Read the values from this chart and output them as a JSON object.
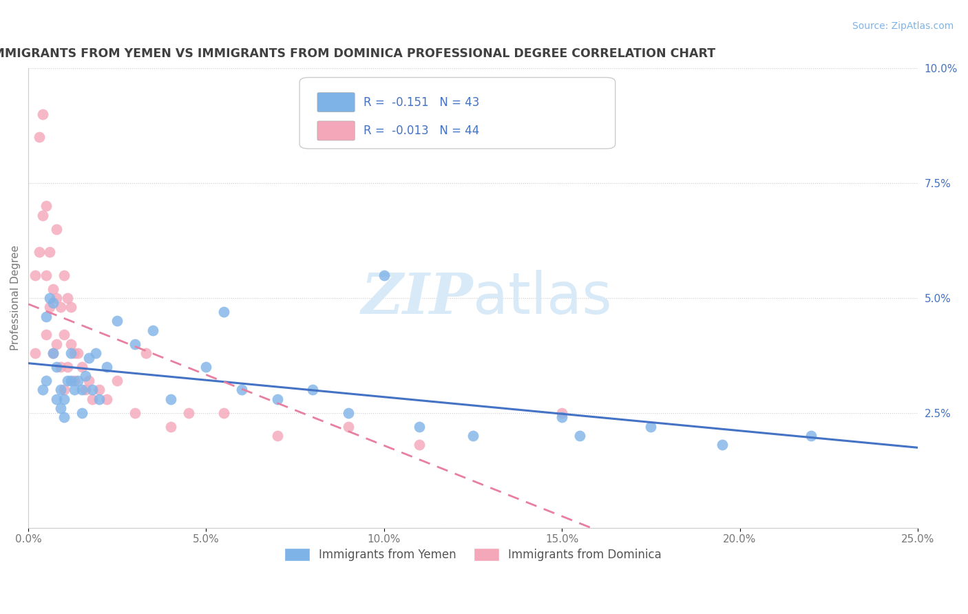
{
  "title": "IMMIGRANTS FROM YEMEN VS IMMIGRANTS FROM DOMINICA PROFESSIONAL DEGREE CORRELATION CHART",
  "source_text": "Source: ZipAtlas.com",
  "ylabel": "Professional Degree",
  "xlim": [
    0.0,
    0.25
  ],
  "ylim": [
    0.0,
    0.1
  ],
  "xticks": [
    0.0,
    0.05,
    0.1,
    0.15,
    0.2,
    0.25
  ],
  "xtick_labels": [
    "0.0%",
    "5.0%",
    "10.0%",
    "15.0%",
    "20.0%",
    "25.0%"
  ],
  "yticks_right": [
    0.0,
    0.025,
    0.05,
    0.075,
    0.1
  ],
  "ytick_labels_right": [
    "",
    "2.5%",
    "5.0%",
    "7.5%",
    "10.0%"
  ],
  "legend_r1": "R =  -0.151   N = 43",
  "legend_r2": "R =  -0.013   N = 44",
  "legend_label1": "Immigrants from Yemen",
  "legend_label2": "Immigrants from Dominica",
  "color_yemen": "#7EB3E8",
  "color_dominica": "#F4A7B9",
  "color_yemen_line": "#4472c4",
  "color_dominica_line": "#E87FA0",
  "background_color": "#ffffff",
  "grid_color": "#cccccc",
  "title_color": "#404040",
  "source_color": "#7EB3E8",
  "legend_text_color": "#4472c4",
  "watermark_color": "#d8eaf7",
  "yemen_x": [
    0.004,
    0.005,
    0.005,
    0.006,
    0.007,
    0.007,
    0.008,
    0.008,
    0.009,
    0.009,
    0.01,
    0.01,
    0.011,
    0.012,
    0.012,
    0.013,
    0.014,
    0.015,
    0.015,
    0.016,
    0.017,
    0.018,
    0.019,
    0.02,
    0.022,
    0.025,
    0.03,
    0.035,
    0.04,
    0.05,
    0.055,
    0.06,
    0.07,
    0.08,
    0.09,
    0.1,
    0.11,
    0.125,
    0.15,
    0.155,
    0.175,
    0.195,
    0.22
  ],
  "yemen_y": [
    0.03,
    0.046,
    0.032,
    0.05,
    0.049,
    0.038,
    0.028,
    0.035,
    0.026,
    0.03,
    0.024,
    0.028,
    0.032,
    0.038,
    0.032,
    0.03,
    0.032,
    0.03,
    0.025,
    0.033,
    0.037,
    0.03,
    0.038,
    0.028,
    0.035,
    0.045,
    0.04,
    0.043,
    0.028,
    0.035,
    0.047,
    0.03,
    0.028,
    0.03,
    0.025,
    0.055,
    0.022,
    0.02,
    0.024,
    0.02,
    0.022,
    0.018,
    0.02
  ],
  "dominica_x": [
    0.002,
    0.002,
    0.003,
    0.003,
    0.004,
    0.004,
    0.005,
    0.005,
    0.005,
    0.006,
    0.006,
    0.007,
    0.007,
    0.008,
    0.008,
    0.008,
    0.009,
    0.009,
    0.01,
    0.01,
    0.01,
    0.011,
    0.011,
    0.012,
    0.012,
    0.013,
    0.013,
    0.014,
    0.015,
    0.016,
    0.017,
    0.018,
    0.02,
    0.022,
    0.025,
    0.03,
    0.033,
    0.04,
    0.045,
    0.055,
    0.07,
    0.09,
    0.11,
    0.15
  ],
  "dominica_y": [
    0.055,
    0.038,
    0.085,
    0.06,
    0.09,
    0.068,
    0.07,
    0.055,
    0.042,
    0.06,
    0.048,
    0.052,
    0.038,
    0.05,
    0.065,
    0.04,
    0.048,
    0.035,
    0.055,
    0.042,
    0.03,
    0.05,
    0.035,
    0.048,
    0.04,
    0.038,
    0.032,
    0.038,
    0.035,
    0.03,
    0.032,
    0.028,
    0.03,
    0.028,
    0.032,
    0.025,
    0.038,
    0.022,
    0.025,
    0.025,
    0.02,
    0.022,
    0.018,
    0.025
  ]
}
